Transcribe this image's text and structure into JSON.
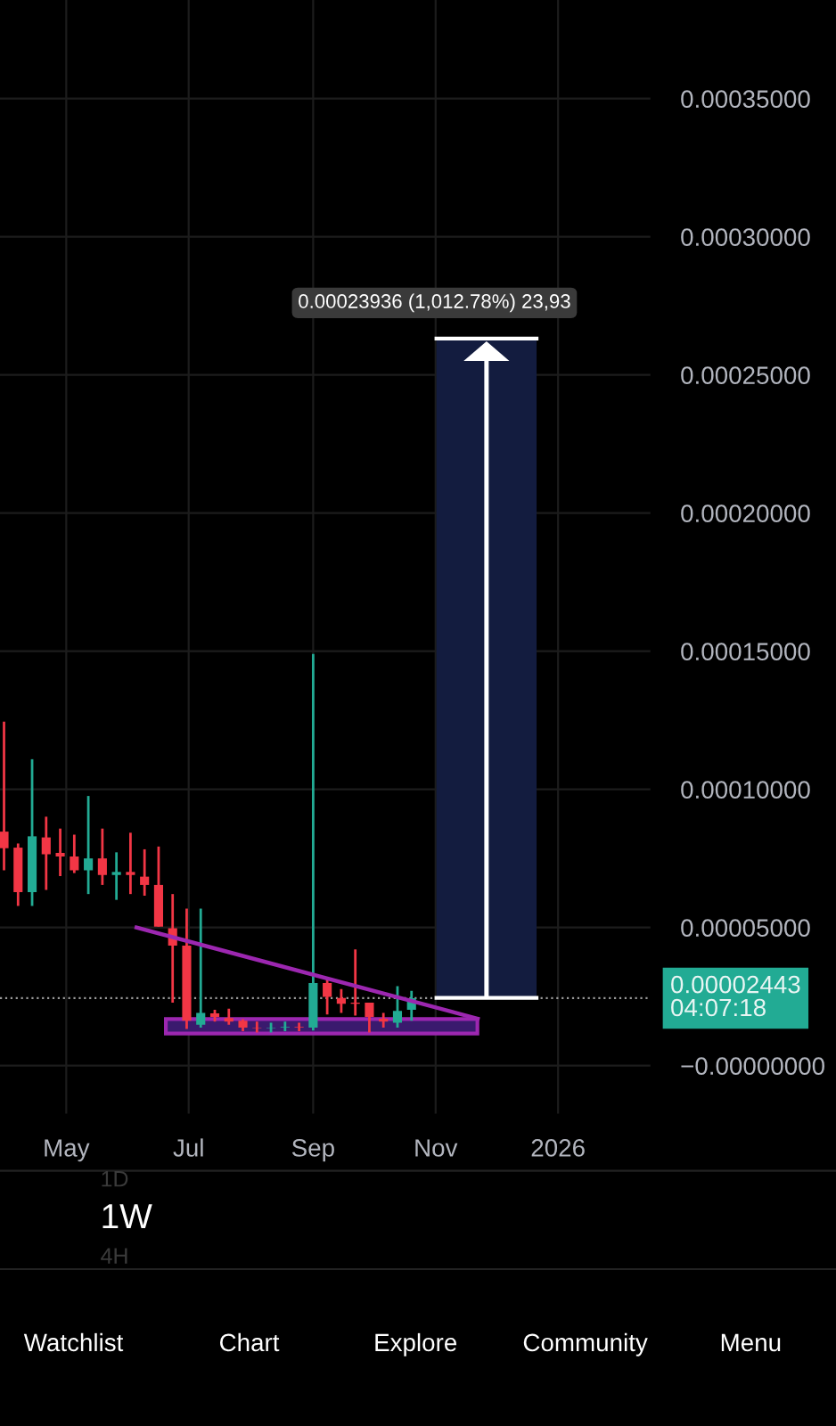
{
  "chart_data": {
    "type": "candlestick",
    "x": [
      "2025-03-31",
      "2025-04-07",
      "2025-04-14",
      "2025-04-21",
      "2025-04-28",
      "2025-05-05",
      "2025-05-12",
      "2025-05-19",
      "2025-05-26",
      "2025-06-02",
      "2025-06-09",
      "2025-06-16",
      "2025-06-23",
      "2025-06-30",
      "2025-07-07",
      "2025-07-14",
      "2025-07-21",
      "2025-07-28",
      "2025-08-04",
      "2025-08-11",
      "2025-08-18",
      "2025-08-25",
      "2025-09-01",
      "2025-09-08",
      "2025-09-15",
      "2025-09-22",
      "2025-09-29",
      "2025-10-06",
      "2025-10-13",
      "2025-10-20"
    ],
    "ohlc": [
      [
        8.47e-05,
        0.0001245,
        7.07e-05,
        7.87e-05
      ],
      [
        7.89e-05,
        8.04e-05,
        5.78e-05,
        6.28e-05
      ],
      [
        6.28e-05,
        0.0001109,
        5.78e-05,
        8.3e-05
      ],
      [
        8.26e-05,
        9.01e-05,
        6.36e-05,
        7.65e-05
      ],
      [
        7.7e-05,
        8.58e-05,
        6.86e-05,
        7.57e-05
      ],
      [
        7.57e-05,
        8.36e-05,
        6.97e-05,
        7.07e-05
      ],
      [
        7.07e-05,
        9.76e-05,
        6.21e-05,
        7.5e-05
      ],
      [
        7.5e-05,
        8.58e-05,
        6.54e-05,
        6.9e-05
      ],
      [
        6.9e-05,
        7.72e-05,
        6e-05,
        7.01e-05
      ],
      [
        7.01e-05,
        8.43e-05,
        6.21e-05,
        6.9e-05
      ],
      [
        6.84e-05,
        7.83e-05,
        6.15e-05,
        6.54e-05
      ],
      [
        6.54e-05,
        7.93e-05,
        5.03e-05,
        5.03e-05
      ],
      [
        4.97e-05,
        6.21e-05,
        2.28e-05,
        4.34e-05
      ],
      [
        4.34e-05,
        5.68e-05,
        1.33e-05,
        1.63e-05
      ],
      [
        1.48e-05,
        5.68e-05,
        1.38e-05,
        1.91e-05
      ],
      [
        1.89e-05,
        2.02e-05,
        1.59e-05,
        1.76e-05
      ],
      [
        1.72e-05,
        2.06e-05,
        1.48e-05,
        1.59e-05
      ],
      [
        1.63e-05,
        1.68e-05,
        1.25e-05,
        1.38e-05
      ],
      [
        1.38e-05,
        1.59e-05,
        1.2e-05,
        1.36e-05
      ],
      [
        1.36e-05,
        1.55e-05,
        1.2e-05,
        1.38e-05
      ],
      [
        1.38e-05,
        1.59e-05,
        1.25e-05,
        1.4e-05
      ],
      [
        1.4e-05,
        1.55e-05,
        1.25e-05,
        1.38e-05
      ],
      [
        1.38e-05,
        0.000149,
        1.27e-05,
        2.99e-05
      ],
      [
        2.99e-05,
        3.2e-05,
        1.85e-05,
        2.49e-05
      ],
      [
        2.45e-05,
        2.77e-05,
        1.91e-05,
        2.24e-05
      ],
      [
        2.28e-05,
        4.21e-05,
        1.81e-05,
        2.24e-05
      ],
      [
        2.28e-05,
        2.28e-05,
        1.2e-05,
        1.76e-05
      ],
      [
        1.7e-05,
        1.91e-05,
        1.38e-05,
        1.59e-05
      ],
      [
        1.55e-05,
        2.88e-05,
        1.38e-05,
        1.98e-05
      ],
      [
        2.02e-05,
        2.71e-05,
        1.63e-05,
        2.443e-05
      ]
    ],
    "colors": [
      "#f23645",
      "#f23645",
      "#22ab94",
      "#f23645",
      "#f23645",
      "#f23645",
      "#22ab94",
      "#f23645",
      "#22ab94",
      "#f23645",
      "#f23645",
      "#f23645",
      "#f23645",
      "#f23645",
      "#22ab94",
      "#f23645",
      "#f23645",
      "#f23645",
      "#f23645",
      "#22ab94",
      "#22ab94",
      "#f23645",
      "#22ab94",
      "#f23645",
      "#f23645",
      "#f23645",
      "#f23645",
      "#f23645",
      "#22ab94",
      "#22ab94"
    ],
    "series": [
      {
        "type": "line",
        "x": [
          "2025-06-05",
          "2025-11-22"
        ],
        "values": [
          5e-05,
          1.7e-05
        ],
        "color": "#9c27b0"
      }
    ],
    "ref_lines": [
      {
        "axis": "y",
        "value": 2.443e-05,
        "label": "0.00002443\n04:07:18",
        "color": "#9a9a9a",
        "line_style": "dotted"
      }
    ],
    "xlim": [
      "2025-03-29",
      "2026-02-16"
    ],
    "ylim": [
      -1.74e-05,
      0.0003857
    ],
    "xticks": [
      {
        "value": "2025-05-01",
        "label": "May"
      },
      {
        "value": "2025-07-01",
        "label": "Jul"
      },
      {
        "value": "2025-09-01",
        "label": "Sep"
      },
      {
        "value": "2025-11-01",
        "label": "Nov"
      },
      {
        "value": "2026-01-01",
        "label": "2026"
      }
    ],
    "yticks": [
      {
        "value": 0,
        "label": "−0.00000000"
      },
      {
        "value": 5e-05,
        "label": "0.00005000"
      },
      {
        "value": 0.0001,
        "label": "0.00010000"
      },
      {
        "value": 0.00015,
        "label": "0.00015000"
      },
      {
        "value": 0.0002,
        "label": "0.00020000"
      },
      {
        "value": 0.00025,
        "label": "0.00025000"
      },
      {
        "value": 0.0003,
        "label": "0.00030000"
      },
      {
        "value": 0.00035,
        "label": "0.00035000"
      }
    ],
    "grid": true,
    "annotations": [
      "0.00023936 (1,012.78%) 23,93",
      "1D",
      "1W",
      "4H",
      "Watchlist",
      "Chart",
      "Explore",
      "Community",
      "Menu"
    ]
  }
}
